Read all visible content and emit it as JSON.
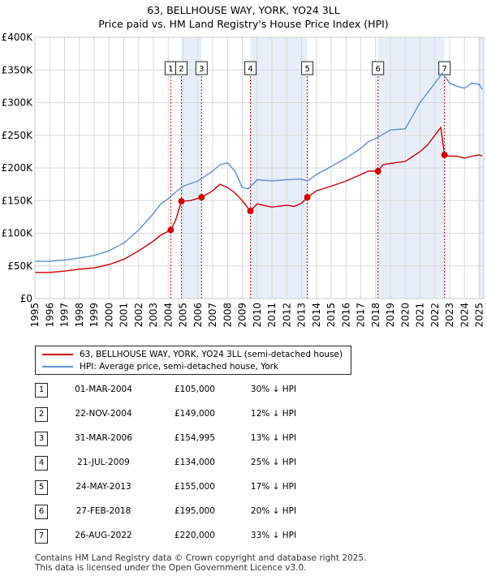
{
  "title_line1": "63, BELLHOUSE WAY, YORK, YO24 3LL",
  "title_line2": "Price paid vs. HM Land Registry's House Price Index (HPI)",
  "legend": {
    "property_label": "63, BELLHOUSE WAY, YORK, YO24 3LL (semi-detached house)",
    "hpi_label": "HPI: Average price, semi-detached house, York"
  },
  "colors": {
    "property": "#cc0000",
    "hpi": "#5b8fd0",
    "shade": "#e8eef9",
    "grid": "#d8d8d8",
    "marker_line": "#cc0000"
  },
  "sales": [
    {
      "num": "1",
      "date": "01-MAR-2004",
      "price": "£105,000",
      "hpi_diff": "30% ↓ HPI"
    },
    {
      "num": "2",
      "date": "22-NOV-2004",
      "price": "£149,000",
      "hpi_diff": "12% ↓ HPI"
    },
    {
      "num": "3",
      "date": "31-MAR-2006",
      "price": "£154,995",
      "hpi_diff": "13% ↓ HPI"
    },
    {
      "num": "4",
      "date": "21-JUL-2009",
      "price": "£134,000",
      "hpi_diff": "25% ↓ HPI"
    },
    {
      "num": "5",
      "date": "24-MAY-2013",
      "price": "£155,000",
      "hpi_diff": "17% ↓ HPI"
    },
    {
      "num": "6",
      "date": "27-FEB-2018",
      "price": "£195,000",
      "hpi_diff": "20% ↓ HPI"
    },
    {
      "num": "7",
      "date": "26-AUG-2022",
      "price": "£220,000",
      "hpi_diff": "33% ↓ HPI"
    }
  ],
  "footer_line1": "Contains HM Land Registry data © Crown copyright and database right 2025.",
  "footer_line2": "This data is licensed under the Open Government Licence v3.0.",
  "chart_data": {
    "type": "line",
    "title": "63, BELLHOUSE WAY, YORK, YO24 3LL — Price paid vs. HM Land Registry's House Price Index (HPI)",
    "xlim": [
      1995,
      2025.3
    ],
    "ylim": [
      0,
      400000
    ],
    "x_ticks": [
      "1995",
      "1996",
      "1997",
      "1998",
      "1999",
      "2000",
      "2001",
      "2002",
      "2003",
      "2004",
      "2005",
      "2006",
      "2007",
      "2008",
      "2009",
      "2010",
      "2011",
      "2012",
      "2013",
      "2014",
      "2015",
      "2016",
      "2017",
      "2018",
      "2019",
      "2020",
      "2021",
      "2022",
      "2023",
      "2024",
      "2025"
    ],
    "y_ticks": [
      {
        "value": 0,
        "label": "£0"
      },
      {
        "value": 50000,
        "label": "£50K"
      },
      {
        "value": 100000,
        "label": "£100K"
      },
      {
        "value": 150000,
        "label": "£150K"
      },
      {
        "value": 200000,
        "label": "£200K"
      },
      {
        "value": 250000,
        "label": "£250K"
      },
      {
        "value": 300000,
        "label": "£300K"
      },
      {
        "value": 350000,
        "label": "£350K"
      },
      {
        "value": 400000,
        "label": "£400K"
      }
    ],
    "shaded_ranges": [
      [
        2004.88,
        2006.25
      ],
      [
        2009.55,
        2013.39
      ],
      [
        2018.16,
        2022.65
      ],
      [
        2024.9,
        2025.3
      ]
    ],
    "sale_markers": [
      {
        "label": "1",
        "x": 2004.17,
        "y": 105000
      },
      {
        "label": "2",
        "x": 2004.89,
        "y": 149000
      },
      {
        "label": "3",
        "x": 2006.25,
        "y": 154995
      },
      {
        "label": "4",
        "x": 2009.55,
        "y": 134000
      },
      {
        "label": "5",
        "x": 2013.39,
        "y": 155000
      },
      {
        "label": "6",
        "x": 2018.16,
        "y": 195000
      },
      {
        "label": "7",
        "x": 2022.65,
        "y": 220000
      }
    ],
    "series": [
      {
        "name": "63, BELLHOUSE WAY, YORK, YO24 3LL (semi-detached house)",
        "x": [
          1995,
          1996,
          1997,
          1998,
          1999,
          2000,
          2001,
          2002,
          2003,
          2003.5,
          2004.17,
          2004.5,
          2004.89,
          2005.5,
          2006.25,
          2007,
          2007.5,
          2008,
          2008.5,
          2009,
          2009.4,
          2009.55,
          2010,
          2011,
          2012,
          2012.5,
          2013,
          2013.39,
          2014,
          2015,
          2016,
          2017,
          2017.5,
          2018.16,
          2018.5,
          2019,
          2020,
          2021,
          2021.5,
          2022,
          2022.4,
          2022.65,
          2023,
          2023.5,
          2024,
          2024.5,
          2025,
          2025.2
        ],
        "values": [
          40000,
          40000,
          42000,
          45000,
          47000,
          52000,
          60000,
          73000,
          88000,
          97000,
          105000,
          120000,
          149000,
          150000,
          154995,
          165000,
          175000,
          170000,
          162000,
          150000,
          138000,
          134000,
          145000,
          140000,
          143000,
          141000,
          146000,
          155000,
          165000,
          172000,
          180000,
          190000,
          195000,
          195000,
          205000,
          207000,
          210000,
          225000,
          235000,
          250000,
          262000,
          220000,
          218000,
          218000,
          215000,
          218000,
          220000,
          218000
        ]
      },
      {
        "name": "HPI: Average price, semi-detached house, York",
        "x": [
          1995,
          1996,
          1997,
          1998,
          1999,
          2000,
          2001,
          2002,
          2003,
          2003.5,
          2004,
          2004.5,
          2005,
          2006,
          2007,
          2007.5,
          2008,
          2008.5,
          2009,
          2009.4,
          2010,
          2011,
          2012,
          2013,
          2013.4,
          2014,
          2015,
          2016,
          2017,
          2017.5,
          2018,
          2019,
          2020,
          2021,
          2021.5,
          2022,
          2022.5,
          2023,
          2023.5,
          2024,
          2024.5,
          2025,
          2025.2
        ],
        "values": [
          57000,
          57000,
          59000,
          62000,
          66000,
          73000,
          85000,
          105000,
          130000,
          145000,
          153000,
          163000,
          172000,
          180000,
          195000,
          205000,
          208000,
          195000,
          170000,
          168000,
          182000,
          180000,
          182000,
          183000,
          180000,
          190000,
          202000,
          215000,
          230000,
          240000,
          245000,
          258000,
          260000,
          300000,
          315000,
          330000,
          345000,
          330000,
          325000,
          322000,
          330000,
          328000,
          320000
        ]
      }
    ]
  }
}
